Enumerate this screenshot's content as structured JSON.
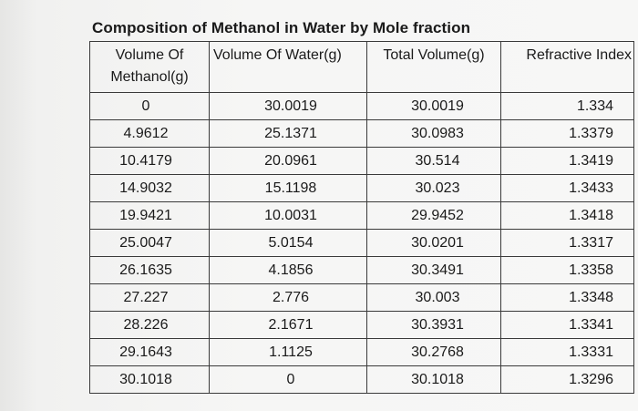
{
  "title": "Composition of Methanol in Water  by Mole fraction",
  "table": {
    "headers": [
      {
        "line1": "Volume Of",
        "line2": "Methanol(g)"
      },
      {
        "line1": "Volume Of Water(g)",
        "line2": ""
      },
      {
        "line1": "Total Volume(g)",
        "line2": ""
      },
      {
        "line1": "Refractive Index",
        "line2": ""
      }
    ],
    "rows": [
      [
        "0",
        "30.0019",
        "30.0019",
        "1.334"
      ],
      [
        "4.9612",
        "25.1371",
        "30.0983",
        "1.3379"
      ],
      [
        "10.4179",
        "20.0961",
        "30.514",
        "1.3419"
      ],
      [
        "14.9032",
        "15.1198",
        "30.023",
        "1.3433"
      ],
      [
        "19.9421",
        "10.0031",
        "29.9452",
        "1.3418"
      ],
      [
        "25.0047",
        "5.0154",
        "30.0201",
        "1.3317"
      ],
      [
        "26.1635",
        "4.1856",
        "30.3491",
        "1.3358"
      ],
      [
        "27.227",
        "2.776",
        "30.003",
        "1.3348"
      ],
      [
        "28.226",
        "2.1671",
        "30.3931",
        "1.3341"
      ],
      [
        "29.1643",
        "1.1125",
        "30.2768",
        "1.3331"
      ],
      [
        "30.1018",
        "0",
        "30.1018",
        "1.3296"
      ]
    ]
  }
}
